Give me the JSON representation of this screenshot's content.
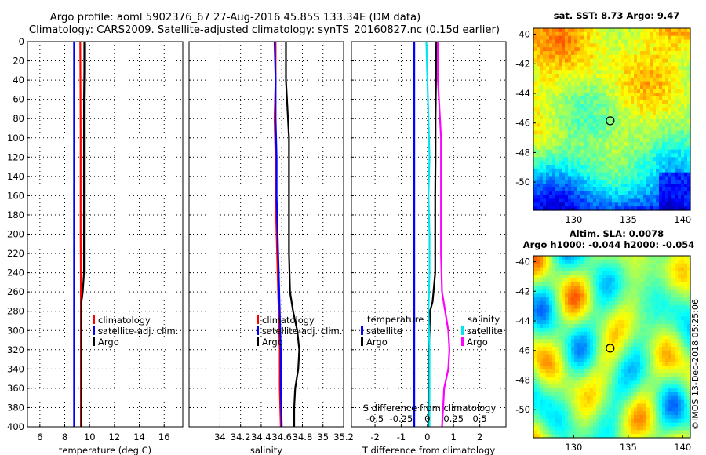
{
  "title": {
    "line1": "Argo profile: aoml 5902376_67 27-Aug-2016 45.85S 133.34E (DM data)",
    "line2": "Climatology: CARS2009. Satellite-adjusted climatology: synTS_20160827.nc (0.15d earlier)"
  },
  "depth_ticks": [
    0,
    20,
    40,
    60,
    80,
    100,
    120,
    140,
    160,
    180,
    200,
    220,
    240,
    260,
    280,
    300,
    320,
    340,
    360,
    380,
    400
  ],
  "colors": {
    "climatology": "#ff0000",
    "satellite": "#0000ff",
    "argo": "#000000",
    "cyan": "#00e5ee",
    "magenta": "#ff00ff"
  },
  "chart_data": [
    {
      "type": "line",
      "name": "temperature",
      "xlabel": "temperature (deg C)",
      "xlim": [
        5,
        17.5
      ],
      "ylim": [
        400,
        0
      ],
      "xticks": [
        6,
        8,
        10,
        12,
        14,
        16
      ],
      "xtick_labels": [
        "6",
        "8",
        "10",
        "12",
        "14",
        "16"
      ],
      "legend": [
        "climatology",
        "satellite-adj. clim.",
        "Argo"
      ],
      "series": [
        {
          "name": "climatology",
          "color": "#ff0000",
          "depth": [
            0,
            50,
            100,
            150,
            200,
            250,
            300,
            350,
            400
          ],
          "values": [
            9.25,
            9.27,
            9.28,
            9.28,
            9.28,
            9.3,
            9.3,
            9.3,
            9.3
          ]
        },
        {
          "name": "satellite-adj. clim.",
          "color": "#0000ff",
          "depth": [
            0,
            400
          ],
          "values": [
            8.75,
            8.75
          ]
        },
        {
          "name": "Argo",
          "color": "#000000",
          "depth": [
            0,
            30,
            60,
            90,
            120,
            150,
            180,
            210,
            240,
            260,
            270,
            280,
            300,
            320,
            340,
            360,
            380,
            400
          ],
          "values": [
            9.58,
            9.58,
            9.55,
            9.55,
            9.55,
            9.55,
            9.55,
            9.55,
            9.55,
            9.45,
            9.35,
            9.35,
            9.35,
            9.35,
            9.35,
            9.35,
            9.35,
            9.35
          ]
        }
      ]
    },
    {
      "type": "line",
      "name": "salinity",
      "xlabel": "salinity",
      "xlim": [
        33.7,
        35.2
      ],
      "ylim": [
        400,
        0
      ],
      "xticks": [
        34,
        34.2,
        34.4,
        34.6,
        34.8,
        35,
        35.2
      ],
      "xtick_labels": [
        "34",
        "34.2",
        "34.4",
        "34.6",
        "34.8",
        "35",
        "35.2"
      ],
      "legend": [
        "climatology",
        "satellite-adj. clim.",
        "Argo"
      ],
      "series": [
        {
          "name": "climatology",
          "color": "#ff0000",
          "depth": [
            0,
            40,
            80,
            120,
            160,
            200,
            240,
            280,
            320,
            360,
            400
          ],
          "values": [
            34.54,
            34.54,
            34.53,
            34.54,
            34.54,
            34.55,
            34.56,
            34.57,
            34.58,
            34.58,
            34.59
          ]
        },
        {
          "name": "satellite-adj. clim.",
          "color": "#0000ff",
          "depth": [
            0,
            40,
            80,
            120,
            160,
            200,
            240,
            280,
            320,
            360,
            400
          ],
          "values": [
            34.53,
            34.54,
            34.54,
            34.55,
            34.55,
            34.56,
            34.57,
            34.58,
            34.59,
            34.59,
            34.6
          ]
        },
        {
          "name": "Argo",
          "color": "#000000",
          "depth": [
            0,
            20,
            40,
            60,
            80,
            100,
            140,
            180,
            220,
            260,
            280,
            300,
            320,
            340,
            360,
            380,
            400
          ],
          "values": [
            34.64,
            34.64,
            34.64,
            34.65,
            34.66,
            34.67,
            34.67,
            34.67,
            34.67,
            34.68,
            34.71,
            34.75,
            34.77,
            34.76,
            34.73,
            34.72,
            34.72
          ]
        }
      ]
    },
    {
      "type": "line",
      "name": "differences",
      "xlabel": "T difference from climatology",
      "xlabel_top": "S difference from climatology",
      "xlim": [
        -2.9,
        3.0
      ],
      "ylim": [
        400,
        0
      ],
      "xticks": [
        -2,
        -1,
        0,
        1,
        2
      ],
      "xtick_labels": [
        "-2",
        "-1",
        "0",
        "1",
        "2"
      ],
      "s_xticks": [
        -0.5,
        -0.25,
        0,
        0.25,
        0.5
      ],
      "s_xtick_labels": [
        "-0.5",
        "-0.25",
        "0",
        "0.25",
        "0.5"
      ],
      "legend_temperature": {
        "heading": "temperature",
        "items": [
          "satellite",
          "Argo"
        ]
      },
      "legend_salinity": {
        "heading": "salinity",
        "items": [
          "satellite",
          "Argo"
        ]
      },
      "series": [
        {
          "name": "temperature satellite",
          "color": "#0000ff",
          "depth": [
            0,
            100,
            200,
            300,
            400
          ],
          "values": [
            -0.5,
            -0.5,
            -0.5,
            -0.5,
            -0.5
          ]
        },
        {
          "name": "temperature Argo",
          "color": "#000000",
          "depth": [
            0,
            40,
            80,
            120,
            160,
            200,
            240,
            270,
            280,
            320,
            360,
            400
          ],
          "values": [
            0.34,
            0.33,
            0.31,
            0.31,
            0.3,
            0.3,
            0.3,
            0.2,
            0.1,
            0.06,
            0.06,
            0.05
          ]
        },
        {
          "name": "salinity satellite",
          "color": "#00e5ee",
          "depth": [
            0,
            40,
            80,
            120,
            160,
            200,
            240,
            280,
            320,
            360,
            400
          ],
          "values": [
            -0.01,
            0.0,
            0.01,
            0.02,
            0.01,
            0.02,
            0.02,
            0.01,
            0.02,
            0.02,
            0.02
          ]
        },
        {
          "name": "salinity Argo",
          "color": "#ff00ff",
          "depth": [
            0,
            40,
            80,
            100,
            140,
            180,
            220,
            260,
            280,
            300,
            320,
            340,
            360,
            380,
            400
          ],
          "values": [
            0.1,
            0.1,
            0.12,
            0.13,
            0.13,
            0.13,
            0.13,
            0.14,
            0.17,
            0.2,
            0.21,
            0.2,
            0.16,
            0.15,
            0.14
          ]
        }
      ]
    },
    {
      "type": "heatmap",
      "name": "sst_map",
      "title": "sat. SST: 8.73  Argo: 9.47",
      "xlim": [
        126.3,
        140.7
      ],
      "ylim": [
        -51.9,
        -39.6
      ],
      "xticks": [
        130,
        135,
        140
      ],
      "yticks": [
        -40,
        -42,
        -44,
        -46,
        -48,
        -50
      ],
      "argo_position": {
        "lon": 133.34,
        "lat": -45.85
      }
    },
    {
      "type": "heatmap",
      "name": "sla_map",
      "title": "Altim. SLA: 0.0078",
      "subtitle": "Argo h1000: -0.044 h2000: -0.054",
      "xlim": [
        126.3,
        140.7
      ],
      "ylim": [
        -51.9,
        -39.6
      ],
      "xticks": [
        130,
        135,
        140
      ],
      "yticks": [
        -40,
        -42,
        -44,
        -46,
        -48,
        -50
      ],
      "argo_position": {
        "lon": 133.34,
        "lat": -45.85
      }
    }
  ],
  "credit": "©IMOS 13-Dec-2018 05:25:06"
}
